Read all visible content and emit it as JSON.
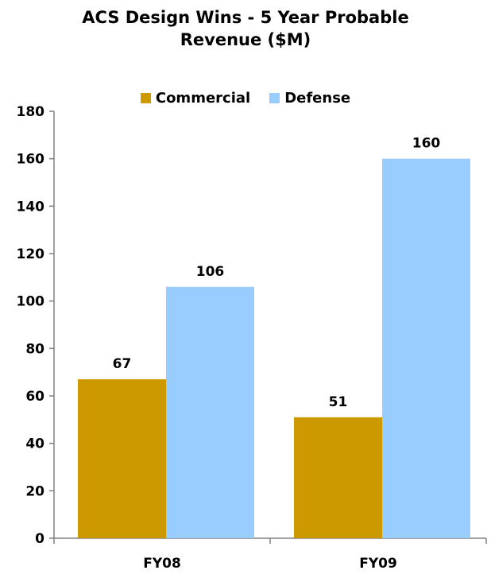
{
  "chart_data": {
    "type": "bar",
    "title_line1": "ACS Design Wins - 5 Year Probable",
    "title_line2": "Revenue ($M)",
    "categories": [
      "FY08",
      "FY09"
    ],
    "series": [
      {
        "name": "Commercial",
        "values": [
          67,
          51
        ],
        "color": "#cc9900"
      },
      {
        "name": "Defense",
        "values": [
          106,
          160
        ],
        "color": "#99ccff"
      }
    ],
    "ylim": [
      0,
      180
    ],
    "yticks": [
      "0",
      "20",
      "40",
      "60",
      "80",
      "100",
      "120",
      "140",
      "160",
      "180"
    ],
    "grid": false,
    "legend_position": "top"
  }
}
